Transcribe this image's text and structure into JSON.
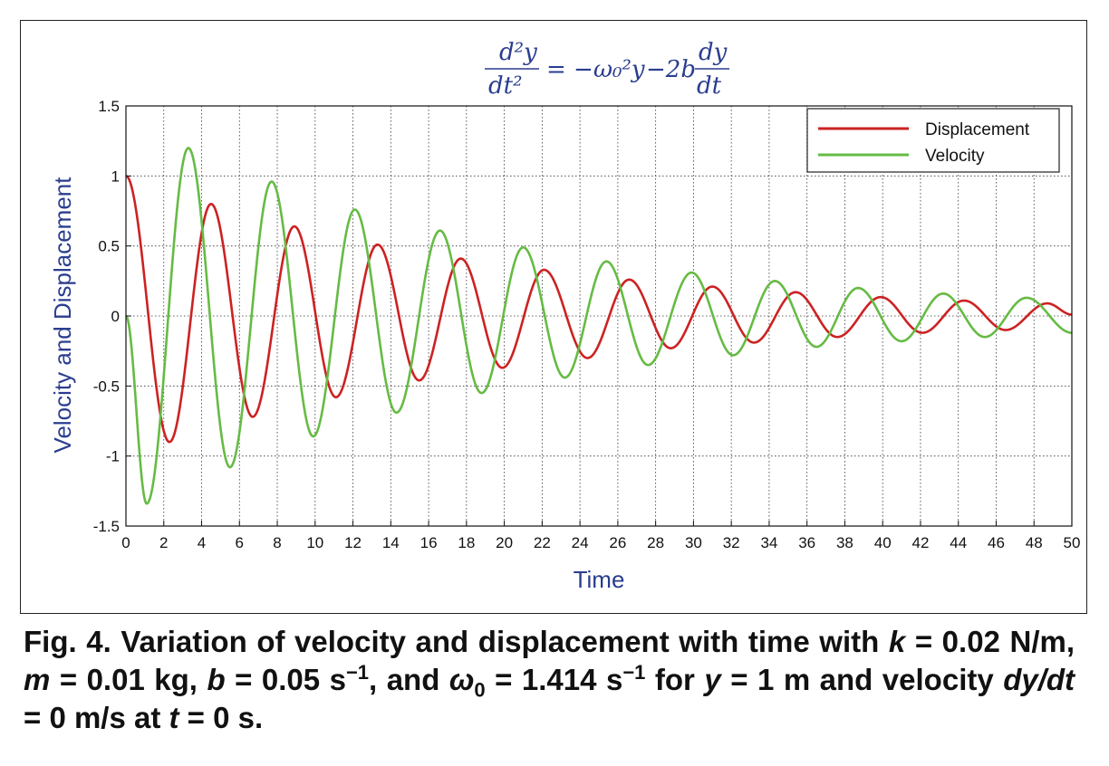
{
  "chart_data": {
    "type": "line",
    "title_equation": {
      "lhs_num": "d²y",
      "lhs_den": "dt²",
      "rhs_a": "= −ω₀²y",
      "rhs_b": "−2b",
      "rhs_num": "dy",
      "rhs_den": "dt"
    },
    "xlabel": "Time",
    "ylabel": "Velocity and Displacement",
    "xlim": [
      0,
      50
    ],
    "ylim": [
      -1.5,
      1.5
    ],
    "x_ticks": [
      "0",
      "2",
      "4",
      "6",
      "8",
      "10",
      "12",
      "14",
      "16",
      "18",
      "20",
      "22",
      "24",
      "26",
      "28",
      "30",
      "32",
      "34",
      "36",
      "38",
      "40",
      "42",
      "44",
      "46",
      "48",
      "50"
    ],
    "y_ticks": [
      "1.5",
      "1",
      "0.5",
      "0",
      "-0.5",
      "-1",
      "-1.5"
    ],
    "grid": true,
    "legend_position": "top-right",
    "series": [
      {
        "name": "Displacement",
        "color": "#cc2222",
        "points": [
          [
            0,
            1.0
          ],
          [
            2.3,
            -0.9
          ],
          [
            4.5,
            0.8
          ],
          [
            6.7,
            -0.72
          ],
          [
            8.9,
            0.64
          ],
          [
            11.1,
            -0.58
          ],
          [
            13.3,
            0.51
          ],
          [
            15.5,
            -0.46
          ],
          [
            17.7,
            0.41
          ],
          [
            19.9,
            -0.37
          ],
          [
            22.1,
            0.33
          ],
          [
            24.4,
            -0.3
          ],
          [
            26.6,
            0.26
          ],
          [
            28.8,
            -0.23
          ],
          [
            31.0,
            0.21
          ],
          [
            33.2,
            -0.19
          ],
          [
            35.4,
            0.17
          ],
          [
            37.6,
            -0.15
          ],
          [
            39.9,
            0.135
          ],
          [
            42.1,
            -0.12
          ],
          [
            44.3,
            0.11
          ],
          [
            46.5,
            -0.1
          ],
          [
            48.7,
            0.09
          ],
          [
            50,
            0.01
          ]
        ]
      },
      {
        "name": "Velocity",
        "color": "#66bb44",
        "points": [
          [
            0,
            0
          ],
          [
            1.1,
            -1.34
          ],
          [
            3.3,
            1.2
          ],
          [
            5.5,
            -1.08
          ],
          [
            7.7,
            0.96
          ],
          [
            9.9,
            -0.86
          ],
          [
            12.1,
            0.76
          ],
          [
            14.3,
            -0.69
          ],
          [
            16.6,
            0.61
          ],
          [
            18.8,
            -0.55
          ],
          [
            21.0,
            0.49
          ],
          [
            23.2,
            -0.44
          ],
          [
            25.4,
            0.39
          ],
          [
            27.6,
            -0.35
          ],
          [
            29.9,
            0.31
          ],
          [
            32.1,
            -0.28
          ],
          [
            34.3,
            0.25
          ],
          [
            36.5,
            -0.22
          ],
          [
            38.7,
            0.2
          ],
          [
            41.0,
            -0.18
          ],
          [
            43.2,
            0.16
          ],
          [
            45.4,
            -0.15
          ],
          [
            47.6,
            0.13
          ],
          [
            50,
            -0.12
          ]
        ]
      }
    ]
  },
  "caption": {
    "fig_label": "Fig. 4.",
    "text_1": " Variation of velocity and displacement with time with ",
    "k_sym": "k",
    "text_2": " = 0.02 N/m, ",
    "m_sym": "m",
    "text_3": " = 0.01 kg, ",
    "b_sym": "b",
    "text_4": " = 0.05 s",
    "exp_1": "−1",
    "text_5": ",  and ",
    "omega_sym": "ω",
    "omega_sub": "0",
    "text_6": " = 1.414 s",
    "exp_2": "−1",
    "text_7": "  for ",
    "y_sym": "y",
    "text_8": " = 1 m and velocity ",
    "dydt_sym": "dy/dt",
    "text_9": " = 0 m/s at ",
    "t_sym": "t",
    "text_10": " = 0 s."
  }
}
